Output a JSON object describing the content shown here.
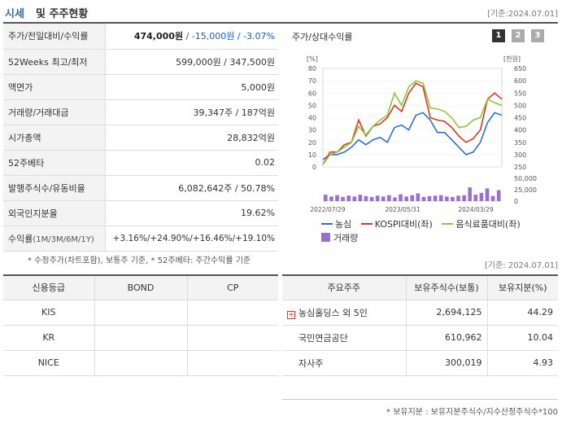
{
  "header": {
    "title_a": "시세",
    "title_b": "및 주주현황",
    "basis": "[기준:2024.07.01]"
  },
  "info": {
    "rows": [
      {
        "label": "주가/전일대비/수익률",
        "price": "474,000원",
        "sep1": " / ",
        "change": "-15,000원",
        "sep2": " / ",
        "rate": "-3.07%"
      },
      {
        "label": "52Weeks 최고/최저",
        "value": "599,000원 / 347,500원"
      },
      {
        "label": "액면가",
        "value": "5,000원"
      },
      {
        "label": "거래량/거래대금",
        "value": "39,347주 / 187억원"
      },
      {
        "label": "시가총액",
        "value": "28,832억원"
      },
      {
        "label": "52주베타",
        "value": "0.02"
      },
      {
        "label": "발행주식수/유동비율",
        "value": "6,082,642주 / 50.78%"
      },
      {
        "label": "외국인지분율",
        "value": "19.62%"
      },
      {
        "label": "수익률",
        "label_sub": "(1M/3M/6M/1Y)",
        "r1": "+3.16%",
        "r2": "+24.90%",
        "r3": "+16.46%",
        "r4": "+19.10%",
        "sep": "/"
      }
    ]
  },
  "chart": {
    "title": "주가/상대수익률",
    "pages": [
      "1",
      "2",
      "3"
    ],
    "left_unit": "[%]",
    "right_unit": "[천원]",
    "vol_ticks": [
      "50,000",
      "25,000",
      "0"
    ],
    "x_ticks": [
      "2022/07/29",
      "2023/05/31",
      "2024/03/29"
    ],
    "legend": {
      "a": "농심",
      "b": "KOSPI대비(좌)",
      "c": "음식료품대비(좌)",
      "d": "거래량"
    },
    "colors": {
      "a": "#2a6fd6",
      "b": "#d9381e",
      "c": "#8cc63f",
      "d": "#9b6fd1"
    }
  },
  "chart_data": {
    "type": "line",
    "left_axis": {
      "unit": "[%]",
      "ylim": [
        0,
        80
      ],
      "ticks": [
        0,
        10,
        20,
        30,
        40,
        50,
        60,
        70,
        80
      ]
    },
    "right_axis": {
      "unit": "[천원]",
      "ylim": [
        250,
        650
      ],
      "ticks": [
        250,
        300,
        350,
        400,
        450,
        500,
        550,
        600,
        650
      ]
    },
    "volume_axis": {
      "ticks": [
        0,
        25000,
        50000
      ]
    },
    "x_tick_labels": [
      "2022/07/29",
      "2023/05/31",
      "2024/03/29"
    ],
    "series": [
      {
        "name": "농심",
        "axis": "right",
        "values": [
          280,
          300,
          300,
          310,
          330,
          360,
          340,
          360,
          370,
          350,
          410,
          420,
          400,
          460,
          470,
          440,
          390,
          390,
          360,
          330,
          300,
          310,
          350,
          430,
          470,
          460
        ]
      },
      {
        "name": "KOSPI대비(좌)",
        "axis": "left",
        "values": [
          2,
          12,
          12,
          18,
          20,
          38,
          25,
          33,
          35,
          40,
          50,
          45,
          60,
          68,
          65,
          40,
          38,
          37,
          32,
          25,
          20,
          23,
          30,
          55,
          60,
          55
        ]
      },
      {
        "name": "음식료품대비(좌)",
        "axis": "left",
        "values": [
          2,
          10,
          12,
          16,
          20,
          33,
          26,
          33,
          38,
          42,
          60,
          50,
          65,
          70,
          68,
          48,
          47,
          45,
          40,
          32,
          33,
          38,
          40,
          55,
          52,
          50
        ]
      },
      {
        "name": "거래량",
        "axis": "volume",
        "values": [
          14000,
          10000,
          13000,
          9000,
          12000,
          10000,
          14000,
          11000,
          9000,
          12000,
          10000,
          13000,
          8000,
          15000,
          10000,
          13000,
          17000,
          9000,
          11000,
          12000,
          13000,
          10000,
          9000,
          12000,
          13000,
          30000,
          14000,
          18000,
          28000,
          11000,
          24000
        ]
      }
    ]
  },
  "note1": "* 수정주가(차트포함), 보통주 기준, * 52주베타: 주간수익률 기준",
  "basis2": "[기준: 2024.07.01]",
  "credit": {
    "headers": [
      "신용등급",
      "BOND",
      "CP"
    ],
    "rows": [
      {
        "agency": "KIS",
        "bond": "",
        "cp": ""
      },
      {
        "agency": "KR",
        "bond": "",
        "cp": ""
      },
      {
        "agency": "NICE",
        "bond": "",
        "cp": ""
      }
    ]
  },
  "holders": {
    "headers": [
      "주요주주",
      "보유주식수(보통)",
      "보유지분(%)"
    ],
    "rows": [
      {
        "name": "농심홀딩스 외 5인",
        "shares": "2,694,125",
        "pct": "44.29",
        "expandable": true
      },
      {
        "name": "국민연금공단",
        "shares": "610,962",
        "pct": "10.04",
        "expandable": false
      },
      {
        "name": "자사주",
        "shares": "300,019",
        "pct": "4.93",
        "expandable": false
      }
    ]
  },
  "note2": "* 보유지분 : 보유지분주식수/지수산정주식수*100"
}
